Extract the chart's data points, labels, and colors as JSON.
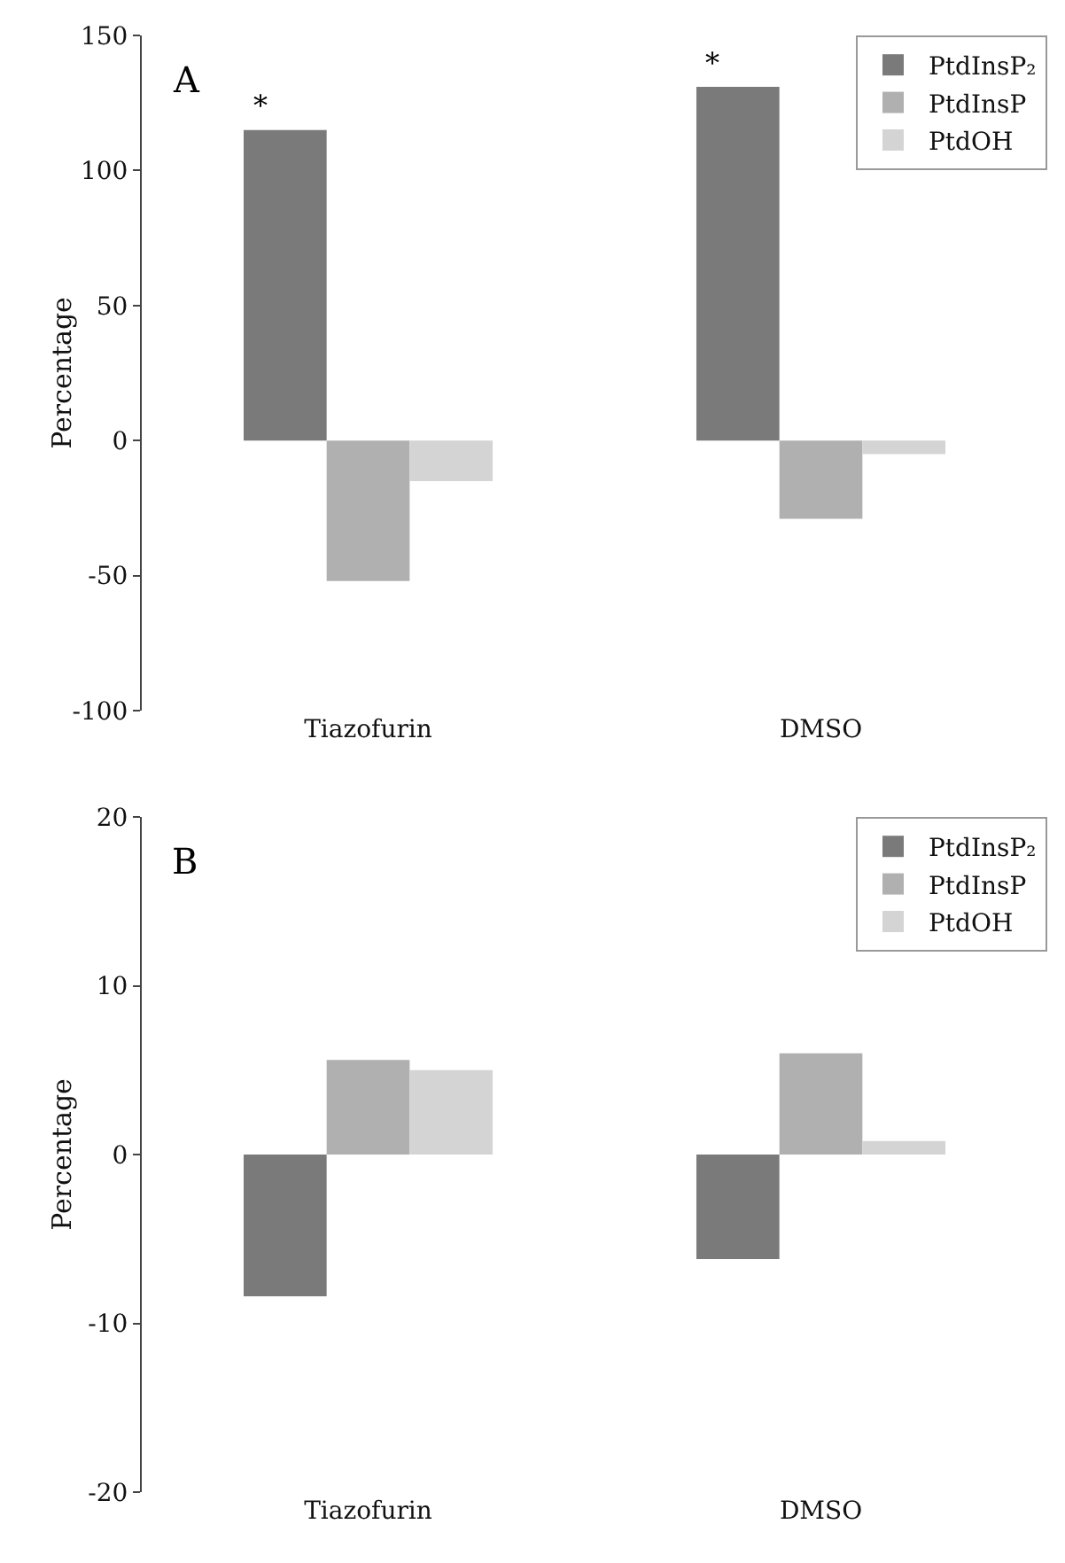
{
  "chart_data": [
    {
      "type": "bar",
      "ylabel": "Percentage",
      "categories": [
        "Tiazofurin",
        "DMSO"
      ],
      "series": [
        {
          "name": "PtdInsP₂",
          "color": "#7a7a7a",
          "values": [
            115,
            131
          ]
        },
        {
          "name": "PtdInsP",
          "color": "#b0b0b0",
          "values": [
            -52,
            -29
          ]
        },
        {
          "name": "PtdOH",
          "color": "#d4d4d4",
          "values": [
            -15,
            -5
          ]
        }
      ],
      "ylim": [
        -100,
        150
      ],
      "yticks": [
        -100,
        -50,
        0,
        50,
        100,
        150
      ],
      "grid": false,
      "legend": "top right",
      "annotations": [
        "A",
        "*",
        "*"
      ]
    },
    {
      "type": "bar",
      "ylabel": "Percentage",
      "categories": [
        "Tiazofurin",
        "DMSO"
      ],
      "series": [
        {
          "name": "PtdInsP₂",
          "color": "#7a7a7a",
          "values": [
            -8.4,
            -6.2
          ]
        },
        {
          "name": "PtdInsP",
          "color": "#b0b0b0",
          "values": [
            5.6,
            6.0
          ]
        },
        {
          "name": "PtdOH",
          "color": "#d4d4d4",
          "values": [
            5.0,
            0.8
          ]
        }
      ],
      "ylim": [
        -20,
        20
      ],
      "yticks": [
        -20,
        -10,
        0,
        10,
        20
      ],
      "grid": false,
      "legend": "top right",
      "annotations": [
        "B"
      ]
    }
  ]
}
